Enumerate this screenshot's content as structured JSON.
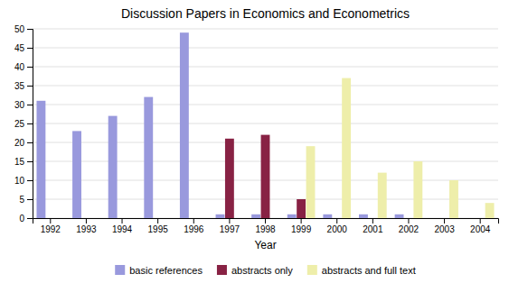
{
  "chart_data": {
    "type": "bar",
    "title": "Discussion Papers in Economics and Econometrics",
    "x_label": "Year",
    "categories": [
      "1992",
      "1993",
      "1994",
      "1995",
      "1996",
      "1997",
      "1998",
      "1999",
      "2000",
      "2001",
      "2002",
      "2003",
      "2004"
    ],
    "series": [
      {
        "name": "basic references",
        "color": "#9999dd",
        "values": [
          31,
          23,
          27,
          32,
          49,
          1,
          1,
          1,
          1,
          1,
          1,
          0,
          0
        ]
      },
      {
        "name": "abstracts only",
        "color": "#882244",
        "values": [
          0,
          0,
          0,
          0,
          0,
          21,
          22,
          5,
          0,
          0,
          0,
          0,
          0
        ]
      },
      {
        "name": "abstracts and full text",
        "color": "#eeeeaa",
        "values": [
          0,
          0,
          0,
          0,
          0,
          0,
          0,
          19,
          37,
          12,
          15,
          10,
          4
        ]
      }
    ],
    "ylim": [
      0,
      50
    ],
    "yticks": [
      0,
      5,
      10,
      15,
      20,
      25,
      30,
      35,
      40,
      45,
      50
    ],
    "grid": true,
    "legend": "bottom"
  }
}
